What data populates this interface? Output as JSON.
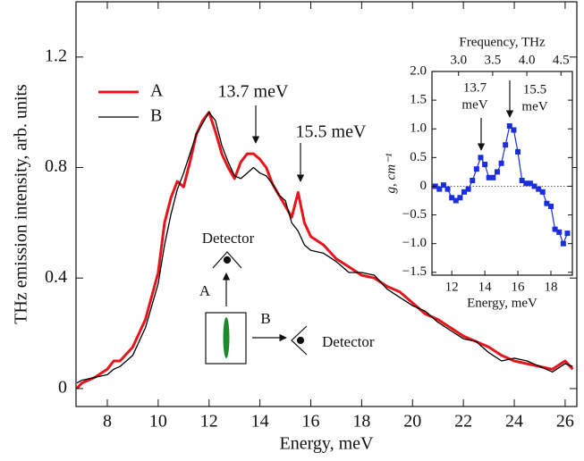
{
  "chart_data": [
    {
      "type": "line",
      "xlabel": "Energy, meV",
      "ylabel": "THz emission intensity, arb. units",
      "x": [
        6.8,
        7.0,
        7.5,
        8.0,
        8.25,
        8.5,
        9.0,
        9.5,
        10.0,
        10.25,
        10.5,
        10.75,
        11.0,
        11.25,
        11.5,
        11.75,
        12.0,
        12.25,
        12.5,
        12.75,
        13.0,
        13.25,
        13.5,
        13.75,
        14.0,
        14.25,
        14.5,
        14.75,
        15.0,
        15.25,
        15.5,
        15.75,
        16.0,
        16.5,
        17.0,
        17.5,
        18.0,
        18.5,
        19.0,
        19.5,
        20.0,
        20.5,
        21.0,
        21.5,
        22.0,
        22.5,
        23.0,
        23.5,
        24.0,
        24.5,
        25.0,
        25.5,
        26.0,
        26.3
      ],
      "series": [
        {
          "name": "A",
          "color": "#e8141c",
          "width": 3,
          "values": [
            0.0,
            0.02,
            0.04,
            0.07,
            0.1,
            0.1,
            0.15,
            0.25,
            0.42,
            0.6,
            0.69,
            0.75,
            0.73,
            0.82,
            0.92,
            0.97,
            1.0,
            0.93,
            0.85,
            0.8,
            0.76,
            0.82,
            0.85,
            0.85,
            0.83,
            0.8,
            0.74,
            0.7,
            0.66,
            0.62,
            0.71,
            0.6,
            0.55,
            0.52,
            0.47,
            0.44,
            0.41,
            0.4,
            0.37,
            0.35,
            0.31,
            0.27,
            0.25,
            0.22,
            0.19,
            0.17,
            0.15,
            0.12,
            0.1,
            0.09,
            0.08,
            0.07,
            0.1,
            0.07
          ]
        },
        {
          "name": "B",
          "color": "#000000",
          "width": 1.3,
          "values": [
            0.02,
            0.03,
            0.04,
            0.05,
            0.07,
            0.08,
            0.12,
            0.22,
            0.38,
            0.52,
            0.63,
            0.72,
            0.78,
            0.85,
            0.92,
            0.96,
            1.0,
            0.97,
            0.88,
            0.82,
            0.77,
            0.76,
            0.78,
            0.8,
            0.78,
            0.77,
            0.74,
            0.7,
            0.68,
            0.6,
            0.57,
            0.52,
            0.5,
            0.49,
            0.46,
            0.42,
            0.42,
            0.41,
            0.36,
            0.33,
            0.3,
            0.28,
            0.24,
            0.21,
            0.18,
            0.17,
            0.13,
            0.1,
            0.11,
            0.1,
            0.08,
            0.06,
            0.09,
            0.08
          ]
        }
      ],
      "xlim": [
        6.77,
        26.46
      ],
      "ylim": [
        -0.065,
        1.4
      ],
      "xticks": [
        8,
        10,
        12,
        14,
        16,
        18,
        20,
        22,
        24,
        26
      ],
      "yticks": [
        0,
        0.4,
        0.8,
        1.2
      ],
      "legend": "upper left",
      "annotations": [
        "13.7 meV",
        "15.5 meV"
      ],
      "schematic_labels": [
        "Detector",
        "A",
        "B",
        "Detector"
      ]
    },
    {
      "type": "line",
      "markers": "square",
      "xlabel": "Energy, meV",
      "ylabel": "g, cm⁻¹",
      "x2label": "Frequency, THz",
      "x": [
        11.0,
        11.25,
        11.5,
        11.75,
        12.0,
        12.25,
        12.5,
        12.75,
        13.0,
        13.25,
        13.5,
        13.75,
        14.0,
        14.25,
        14.5,
        14.75,
        15.0,
        15.25,
        15.5,
        15.75,
        16.0,
        16.25,
        16.5,
        16.75,
        17.0,
        17.25,
        17.5,
        17.75,
        18.0,
        18.25,
        18.5,
        18.75,
        19.0
      ],
      "series": [
        {
          "color": "#1a2ee0",
          "values": [
            0.0,
            -0.05,
            0.02,
            -0.05,
            -0.2,
            -0.25,
            -0.2,
            -0.1,
            -0.05,
            0.1,
            0.3,
            0.5,
            0.38,
            0.15,
            0.15,
            0.25,
            0.4,
            0.72,
            1.05,
            0.98,
            0.6,
            0.1,
            0.05,
            0.05,
            0.0,
            -0.05,
            -0.1,
            -0.3,
            -0.35,
            -0.75,
            -0.8,
            -1.0,
            -0.82
          ]
        }
      ],
      "xlim": [
        10.8,
        19.3
      ],
      "ylim": [
        -1.55,
        2.0
      ],
      "x2lim": [
        2.611,
        4.667
      ],
      "xticks": [
        12,
        14,
        16,
        18
      ],
      "yticks": [
        {
          "value": 2.0,
          "label": "2.0"
        },
        1.5,
        {
          "value": 1.0,
          "label": "1.0"
        },
        0.5,
        0,
        {
          "value": -0.5,
          "label": "−0.5"
        },
        {
          "value": -1.0,
          "label": "−1.0"
        },
        {
          "value": -1.5,
          "label": "−1.5"
        }
      ],
      "x2ticks": [
        {
          "value": 3.0,
          "label": "3.0"
        },
        3.5,
        {
          "value": 4.0,
          "label": "4.0"
        },
        4.5
      ],
      "annotations": [
        [
          "13.7",
          "meV"
        ],
        [
          "15.5",
          "meV"
        ]
      ]
    }
  ]
}
